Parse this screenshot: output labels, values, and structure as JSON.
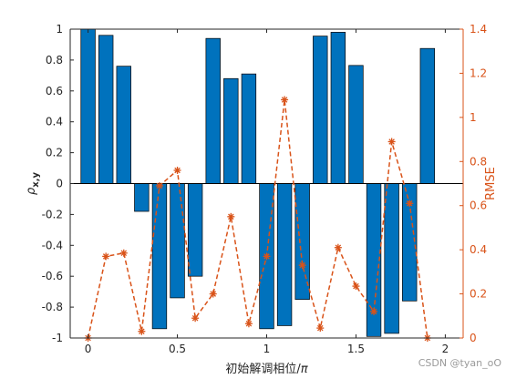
{
  "chart_data": {
    "type": "bar+line",
    "x_ticks": [
      "0",
      "0.5",
      "1",
      "1.5",
      "2"
    ],
    "x_tick_values": [
      0,
      0.5,
      1,
      1.5,
      2
    ],
    "xlabel": "初始解调相位/π",
    "xlabel_prefix": "初始解调相位/",
    "xlabel_pi": "π",
    "xlim": [
      -0.1,
      2.1
    ],
    "left_axis": {
      "label": "ρx,y",
      "label_main": "ρ",
      "label_sub": "x,y",
      "ylim": [
        -1,
        1
      ],
      "ticks": [
        "1",
        "0.8",
        "0.6",
        "0.4",
        "0.2",
        "0",
        "-0.2",
        "-0.4",
        "-0.6",
        "-0.8",
        "-1"
      ],
      "tick_values": [
        1,
        0.8,
        0.6,
        0.4,
        0.2,
        0,
        -0.2,
        -0.4,
        -0.6,
        -0.8,
        -1
      ],
      "color": "#0072bd"
    },
    "right_axis": {
      "label": "RMSE",
      "ylim": [
        0,
        1.4
      ],
      "ticks": [
        "1.4",
        "1.2",
        "1",
        "0.8",
        "0.6",
        "0.4",
        "0.2",
        "0"
      ],
      "tick_values": [
        1.4,
        1.2,
        1,
        0.8,
        0.6,
        0.4,
        0.2,
        0
      ],
      "color": "#d95319"
    },
    "x": [
      0,
      0.1,
      0.2,
      0.3,
      0.4,
      0.5,
      0.6,
      0.7,
      0.8,
      0.9,
      1.0,
      1.1,
      1.2,
      1.3,
      1.4,
      1.5,
      1.6,
      1.7,
      1.8,
      1.9
    ],
    "bar_values": [
      1.0,
      0.96,
      0.76,
      -0.18,
      -0.94,
      -0.74,
      -0.6,
      0.94,
      0.68,
      0.71,
      -0.94,
      -0.92,
      -0.75,
      0.955,
      0.98,
      0.765,
      -0.99,
      -0.97,
      -0.76,
      0.875
    ],
    "rmse_values": [
      0.0,
      0.37,
      0.385,
      0.03,
      0.69,
      0.76,
      0.09,
      0.2,
      0.55,
      0.065,
      0.37,
      1.08,
      0.33,
      0.045,
      0.41,
      0.235,
      0.12,
      0.89,
      0.61,
      0.0
    ]
  },
  "watermark": "CSDN @tyan_oO"
}
